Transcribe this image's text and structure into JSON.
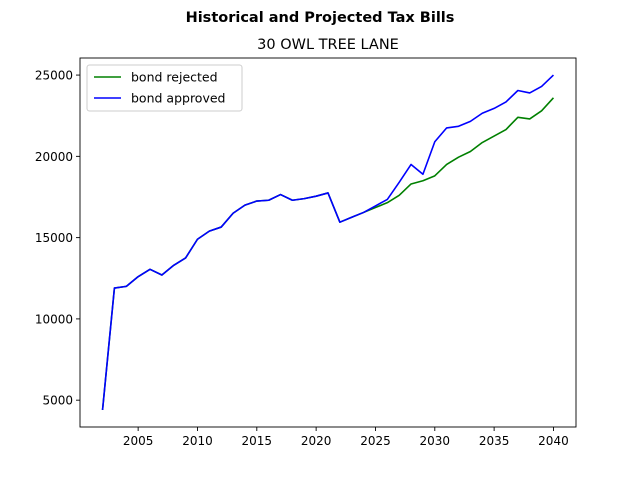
{
  "chart_data": {
    "type": "line",
    "suptitle": "Historical and Projected Tax Bills",
    "title": "30 OWL TREE LANE",
    "xlabel": "",
    "ylabel": "",
    "xlim": [
      2000.1,
      2041.9
    ],
    "ylim": [
      3350,
      26050
    ],
    "xticks": [
      2005,
      2010,
      2015,
      2020,
      2025,
      2030,
      2035,
      2040
    ],
    "yticks": [
      5000,
      10000,
      15000,
      20000,
      25000
    ],
    "grid": false,
    "legend_position": "top-left",
    "series": [
      {
        "name": "bond rejected",
        "color": "#008000",
        "x": [
          2002,
          2003,
          2004,
          2005,
          2006,
          2007,
          2008,
          2009,
          2010,
          2011,
          2012,
          2013,
          2014,
          2015,
          2016,
          2017,
          2018,
          2019,
          2020,
          2021,
          2022,
          2023,
          2024,
          2025,
          2026,
          2027,
          2028,
          2029,
          2030,
          2031,
          2032,
          2033,
          2034,
          2035,
          2036,
          2037,
          2038,
          2039,
          2040
        ],
        "values": [
          4400,
          11900,
          12000,
          12600,
          13050,
          12700,
          13300,
          13750,
          14900,
          15400,
          15650,
          16500,
          17000,
          17250,
          17300,
          17650,
          17300,
          17400,
          17550,
          17750,
          15950,
          16250,
          16550,
          16850,
          17150,
          17600,
          18300,
          18500,
          18800,
          19500,
          19950,
          20300,
          20850,
          21250,
          21650,
          22400,
          22300,
          22800,
          23600
        ]
      },
      {
        "name": "bond approved",
        "color": "#0000ff",
        "x": [
          2002,
          2003,
          2004,
          2005,
          2006,
          2007,
          2008,
          2009,
          2010,
          2011,
          2012,
          2013,
          2014,
          2015,
          2016,
          2017,
          2018,
          2019,
          2020,
          2021,
          2022,
          2023,
          2024,
          2025,
          2026,
          2027,
          2028,
          2029,
          2030,
          2031,
          2032,
          2033,
          2034,
          2035,
          2036,
          2037,
          2038,
          2039,
          2040
        ],
        "values": [
          4400,
          11900,
          12000,
          12600,
          13050,
          12700,
          13300,
          13750,
          14900,
          15400,
          15650,
          16500,
          17000,
          17250,
          17300,
          17650,
          17300,
          17400,
          17550,
          17750,
          15950,
          16250,
          16550,
          16950,
          17350,
          18400,
          19500,
          18900,
          20900,
          21750,
          21850,
          22150,
          22650,
          22950,
          23350,
          24050,
          23900,
          24300,
          25000
        ]
      }
    ]
  }
}
